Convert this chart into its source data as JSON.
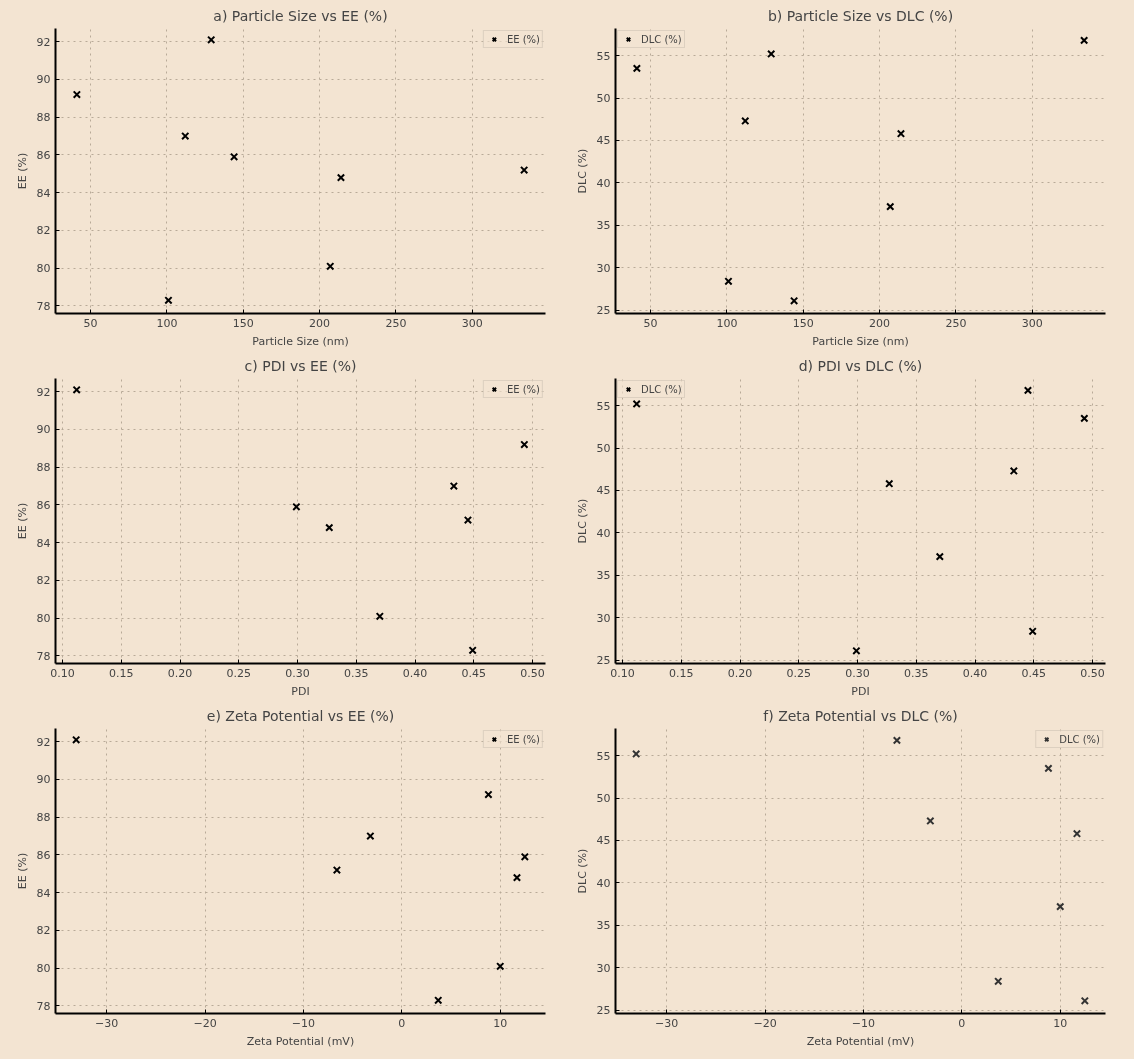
{
  "chart_data": [
    {
      "type": "scatter",
      "title": "a) Particle Size vs EE (%)",
      "xlabel": "Particle Size (nm)",
      "ylabel": "EE (%)",
      "x": [
        41,
        101,
        112,
        129,
        144,
        207,
        214,
        334
      ],
      "series": [
        {
          "name": "EE (%)",
          "color": "#000000",
          "values": [
            89.2,
            78.3,
            87.0,
            92.1,
            85.9,
            80.1,
            84.8,
            85.2
          ]
        }
      ],
      "xlim": [
        27,
        348
      ],
      "ylim": [
        77.6,
        92.7
      ],
      "xticks": [
        50,
        100,
        150,
        200,
        250,
        300
      ],
      "yticks": [
        78,
        80,
        82,
        84,
        86,
        88,
        90,
        92
      ],
      "grid": true,
      "legend": "top right",
      "marker": "cross"
    },
    {
      "type": "scatter",
      "title": "b) Particle Size vs DLC (%)",
      "xlabel": "Particle Size (nm)",
      "ylabel": "DLC (%)",
      "x": [
        41,
        101,
        112,
        129,
        144,
        207,
        214,
        334
      ],
      "series": [
        {
          "name": "DLC (%)",
          "color": "#000000",
          "values": [
            53.5,
            28.4,
            47.3,
            55.2,
            26.1,
            37.2,
            45.8,
            56.8
          ]
        }
      ],
      "xlim": [
        27,
        348
      ],
      "ylim": [
        24.6,
        58.2
      ],
      "xticks": [
        50,
        100,
        150,
        200,
        250,
        300
      ],
      "yticks": [
        25,
        30,
        35,
        40,
        45,
        50,
        55
      ],
      "grid": true,
      "legend": "top left",
      "marker": "cross"
    },
    {
      "type": "scatter",
      "title": "c) PDI vs EE (%)",
      "xlabel": "PDI",
      "ylabel": "EE (%)",
      "x": [
        0.493,
        0.449,
        0.433,
        0.112,
        0.299,
        0.37,
        0.327,
        0.445
      ],
      "series": [
        {
          "name": "EE (%)",
          "color": "#000000",
          "values": [
            89.2,
            78.3,
            87.0,
            92.1,
            85.9,
            80.1,
            84.8,
            85.2
          ]
        }
      ],
      "xlim": [
        0.094,
        0.511
      ],
      "ylim": [
        77.6,
        92.7
      ],
      "xticks": [
        {
          "value": 0.1,
          "label": "0.10"
        },
        {
          "value": 0.15,
          "label": "0.15"
        },
        {
          "value": 0.2,
          "label": "0.20"
        },
        {
          "value": 0.25,
          "label": "0.25"
        },
        {
          "value": 0.3,
          "label": "0.30"
        },
        {
          "value": 0.35,
          "label": "0.35"
        },
        {
          "value": 0.4,
          "label": "0.40"
        },
        {
          "value": 0.45,
          "label": "0.45"
        },
        {
          "value": 0.5,
          "label": "0.50"
        }
      ],
      "yticks": [
        78,
        80,
        82,
        84,
        86,
        88,
        90,
        92
      ],
      "grid": true,
      "legend": "top right",
      "marker": "cross"
    },
    {
      "type": "scatter",
      "title": "d) PDI vs DLC (%)",
      "xlabel": "PDI",
      "ylabel": "DLC (%)",
      "x": [
        0.493,
        0.449,
        0.433,
        0.112,
        0.299,
        0.37,
        0.327,
        0.445
      ],
      "series": [
        {
          "name": "DLC (%)",
          "color": "#000000",
          "values": [
            53.5,
            28.4,
            47.3,
            55.2,
            26.1,
            37.2,
            45.8,
            56.8
          ]
        }
      ],
      "xlim": [
        0.094,
        0.511
      ],
      "ylim": [
        24.6,
        58.2
      ],
      "xticks": [
        {
          "value": 0.1,
          "label": "0.10"
        },
        {
          "value": 0.15,
          "label": "0.15"
        },
        {
          "value": 0.2,
          "label": "0.20"
        },
        {
          "value": 0.25,
          "label": "0.25"
        },
        {
          "value": 0.3,
          "label": "0.30"
        },
        {
          "value": 0.35,
          "label": "0.35"
        },
        {
          "value": 0.4,
          "label": "0.40"
        },
        {
          "value": 0.45,
          "label": "0.45"
        },
        {
          "value": 0.5,
          "label": "0.50"
        }
      ],
      "yticks": [
        25,
        30,
        35,
        40,
        45,
        50,
        55
      ],
      "grid": true,
      "legend": "top left",
      "marker": "cross"
    },
    {
      "type": "scatter",
      "title": "e) Zeta Potential vs EE (%)",
      "xlabel": "Zeta Potential (mV)",
      "ylabel": "EE (%)",
      "x": [
        8.8,
        3.7,
        -3.2,
        -33.1,
        12.5,
        10.0,
        11.7,
        -6.6
      ],
      "series": [
        {
          "name": "EE (%)",
          "color": "#000000",
          "values": [
            89.2,
            78.3,
            87.0,
            92.1,
            85.9,
            80.1,
            84.8,
            85.2
          ]
        }
      ],
      "xlim": [
        -35.2,
        14.6
      ],
      "ylim": [
        77.6,
        92.7
      ],
      "xticks": [
        {
          "value": -30,
          "label": "−30"
        },
        {
          "value": -20,
          "label": "−20"
        },
        {
          "value": -10,
          "label": "−10"
        },
        0,
        10
      ],
      "yticks": [
        78,
        80,
        82,
        84,
        86,
        88,
        90,
        92
      ],
      "grid": true,
      "legend": "top right",
      "marker": "cross"
    },
    {
      "type": "scatter",
      "title": "f) Zeta Potential vs DLC (%)",
      "xlabel": "Zeta Potential (mV)",
      "ylabel": "DLC (%)",
      "x": [
        8.8,
        3.7,
        -3.2,
        -33.1,
        12.5,
        10.0,
        11.7,
        -6.6
      ],
      "series": [
        {
          "name": "DLC (%)",
          "color": "#333333",
          "values": [
            53.5,
            28.4,
            47.3,
            55.2,
            26.1,
            37.2,
            45.8,
            56.8
          ]
        }
      ],
      "xlim": [
        -35.2,
        14.6
      ],
      "ylim": [
        24.6,
        58.2
      ],
      "xticks": [
        {
          "value": -30,
          "label": "−30"
        },
        {
          "value": -20,
          "label": "−20"
        },
        {
          "value": -10,
          "label": "−10"
        },
        0,
        10
      ],
      "yticks": [
        25,
        30,
        35,
        40,
        45,
        50,
        55
      ],
      "grid": true,
      "legend": "top right",
      "marker": "cross"
    }
  ]
}
